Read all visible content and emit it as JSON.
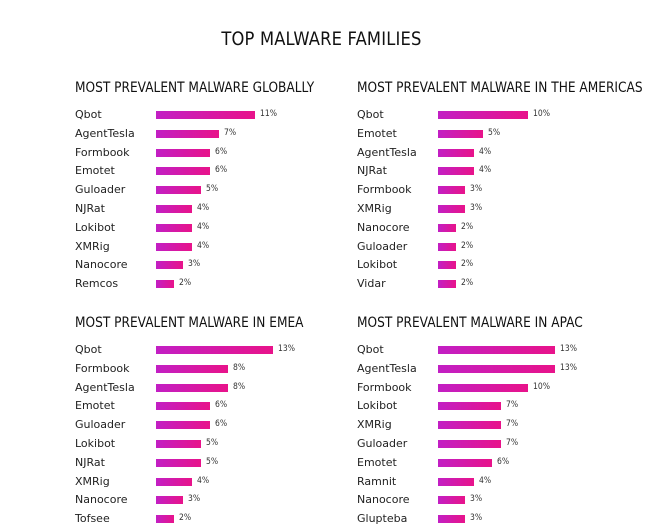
{
  "title": "TOP MALWARE FAMILIES",
  "chart_data": [
    {
      "type": "bar",
      "title": "MOST PREVALENT MALWARE GLOBALLY",
      "categories": [
        "Qbot",
        "AgentTesla",
        "Formbook",
        "Emotet",
        "Guloader",
        "NJRat",
        "Lokibot",
        "XMRig",
        "Nanocore",
        "Remcos"
      ],
      "values": [
        11,
        7,
        6,
        6,
        5,
        4,
        4,
        4,
        3,
        2
      ],
      "labels": [
        "11%",
        "7%",
        "6%",
        "6%",
        "5%",
        "4%",
        "4%",
        "4%",
        "3%",
        "2%"
      ]
    },
    {
      "type": "bar",
      "title": "MOST PREVALENT MALWARE IN THE AMERICAS",
      "categories": [
        "Qbot",
        "Emotet",
        "AgentTesla",
        "NJRat",
        "Formbook",
        "XMRig",
        "Nanocore",
        "Guloader",
        "Lokibot",
        "Vidar"
      ],
      "values": [
        10,
        5,
        4,
        4,
        3,
        3,
        2,
        2,
        2,
        2
      ],
      "labels": [
        "10%",
        "5%",
        "4%",
        "4%",
        "3%",
        "3%",
        "2%",
        "2%",
        "2%",
        "2%"
      ]
    },
    {
      "type": "bar",
      "title": "MOST PREVALENT MALWARE IN EMEA",
      "categories": [
        "Qbot",
        "Formbook",
        "AgentTesla",
        "Emotet",
        "Guloader",
        "Lokibot",
        "NJRat",
        "XMRig",
        "Nanocore",
        "Tofsee"
      ],
      "values": [
        13,
        8,
        8,
        6,
        6,
        5,
        5,
        4,
        3,
        2
      ],
      "labels": [
        "13%",
        "8%",
        "8%",
        "6%",
        "6%",
        "5%",
        "5%",
        "4%",
        "3%",
        "2%"
      ]
    },
    {
      "type": "bar",
      "title": "MOST PREVALENT MALWARE IN APAC",
      "categories": [
        "Qbot",
        "AgentTesla",
        "Formbook",
        "Lokibot",
        "XMRig",
        "Guloader",
        "Emotet",
        "Ramnit",
        "Nanocore",
        "Glupteba"
      ],
      "values": [
        13,
        13,
        10,
        7,
        7,
        7,
        6,
        4,
        3,
        3
      ],
      "labels": [
        "13%",
        "13%",
        "10%",
        "7%",
        "7%",
        "7%",
        "6%",
        "4%",
        "3%",
        "3%"
      ]
    }
  ]
}
